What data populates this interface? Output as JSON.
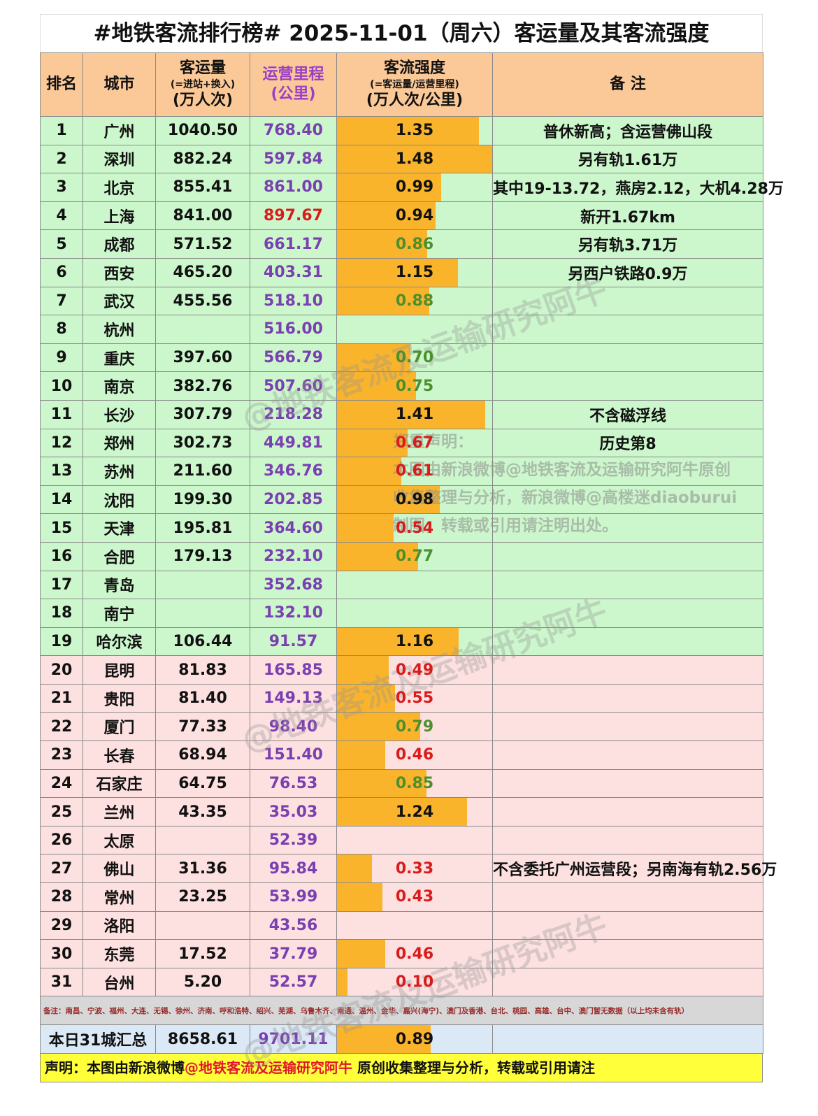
{
  "title": "#地铁客流排行榜# 2025-11-01（周六）客运量及其客流强度",
  "header": {
    "rank": "排名",
    "city": "城市",
    "ridership_l1": "客运量",
    "ridership_l2": "(=进站+换入)",
    "ridership_l3": "(万人次)",
    "mileage_l1": "运营里程",
    "mileage_l2": "(公里)",
    "intensity_l1": "客流强度",
    "intensity_l2": "(=客运量/运营里程)",
    "intensity_l3": "(万人次/公里)",
    "note": "备 注"
  },
  "rows": [
    {
      "rank": "1",
      "city": "广州",
      "ridership": "1040.50",
      "mileage": "768.40",
      "intensity": "1.35",
      "intensity_value": 1.35,
      "note": "普休新高；含运营佛山段",
      "group": "green"
    },
    {
      "rank": "2",
      "city": "深圳",
      "ridership": "882.24",
      "mileage": "597.84",
      "intensity": "1.48",
      "intensity_value": 1.48,
      "note": "另有轨1.61万",
      "group": "green"
    },
    {
      "rank": "3",
      "city": "北京",
      "ridership": "855.41",
      "mileage": "861.00",
      "intensity": "0.99",
      "intensity_value": 0.99,
      "note": "其中19-13.72，燕房2.12，大机4.28万",
      "group": "green"
    },
    {
      "rank": "4",
      "city": "上海",
      "ridership": "841.00",
      "mileage": "897.67",
      "mileage_color": "#d81c1c",
      "intensity": "0.94",
      "intensity_value": 0.94,
      "note": "新开1.67km",
      "group": "green"
    },
    {
      "rank": "5",
      "city": "成都",
      "ridership": "571.52",
      "mileage": "661.17",
      "intensity": "0.86",
      "intensity_value": 0.86,
      "note": "另有轨3.71万",
      "group": "green"
    },
    {
      "rank": "6",
      "city": "西安",
      "ridership": "465.20",
      "mileage": "403.31",
      "intensity": "1.15",
      "intensity_value": 1.15,
      "note": "另西户铁路0.9万",
      "group": "green"
    },
    {
      "rank": "7",
      "city": "武汉",
      "ridership": "455.56",
      "mileage": "518.10",
      "intensity": "0.88",
      "intensity_value": 0.88,
      "note": "",
      "group": "green"
    },
    {
      "rank": "8",
      "city": "杭州",
      "ridership": "",
      "mileage": "516.00",
      "intensity": "",
      "intensity_value": null,
      "note": "",
      "group": "green"
    },
    {
      "rank": "9",
      "city": "重庆",
      "ridership": "397.60",
      "mileage": "566.79",
      "intensity": "0.70",
      "intensity_value": 0.7,
      "note": "",
      "group": "green"
    },
    {
      "rank": "10",
      "city": "南京",
      "ridership": "382.76",
      "mileage": "507.60",
      "intensity": "0.75",
      "intensity_value": 0.75,
      "note": "",
      "group": "green"
    },
    {
      "rank": "11",
      "city": "长沙",
      "ridership": "307.79",
      "mileage": "218.28",
      "intensity": "1.41",
      "intensity_value": 1.41,
      "note": "不含磁浮线",
      "group": "green"
    },
    {
      "rank": "12",
      "city": "郑州",
      "ridership": "302.73",
      "mileage": "449.81",
      "intensity": "0.67",
      "intensity_value": 0.67,
      "note": "历史第8",
      "group": "green"
    },
    {
      "rank": "13",
      "city": "苏州",
      "ridership": "211.60",
      "mileage": "346.76",
      "intensity": "0.61",
      "intensity_value": 0.61,
      "note": "",
      "group": "green"
    },
    {
      "rank": "14",
      "city": "沈阳",
      "ridership": "199.30",
      "mileage": "202.85",
      "intensity": "0.98",
      "intensity_value": 0.98,
      "note": "",
      "group": "green"
    },
    {
      "rank": "15",
      "city": "天津",
      "ridership": "195.81",
      "mileage": "364.60",
      "intensity": "0.54",
      "intensity_value": 0.54,
      "note": "",
      "group": "green"
    },
    {
      "rank": "16",
      "city": "合肥",
      "ridership": "179.13",
      "mileage": "232.10",
      "intensity": "0.77",
      "intensity_value": 0.77,
      "note": "",
      "group": "green"
    },
    {
      "rank": "17",
      "city": "青岛",
      "ridership": "",
      "mileage": "352.68",
      "intensity": "",
      "intensity_value": null,
      "note": "",
      "group": "green"
    },
    {
      "rank": "18",
      "city": "南宁",
      "ridership": "",
      "mileage": "132.10",
      "intensity": "",
      "intensity_value": null,
      "note": "",
      "group": "green"
    },
    {
      "rank": "19",
      "city": "哈尔滨",
      "ridership": "106.44",
      "mileage": "91.57",
      "intensity": "1.16",
      "intensity_value": 1.16,
      "note": "",
      "group": "green"
    },
    {
      "rank": "20",
      "city": "昆明",
      "ridership": "81.83",
      "mileage": "165.85",
      "intensity": "0.49",
      "intensity_value": 0.49,
      "note": "",
      "group": "pink"
    },
    {
      "rank": "21",
      "city": "贵阳",
      "ridership": "81.40",
      "mileage": "149.13",
      "intensity": "0.55",
      "intensity_value": 0.55,
      "note": "",
      "group": "pink"
    },
    {
      "rank": "22",
      "city": "厦门",
      "ridership": "77.33",
      "mileage": "98.40",
      "intensity": "0.79",
      "intensity_value": 0.79,
      "note": "",
      "group": "pink"
    },
    {
      "rank": "23",
      "city": "长春",
      "ridership": "68.94",
      "mileage": "151.40",
      "intensity": "0.46",
      "intensity_value": 0.46,
      "note": "",
      "group": "pink"
    },
    {
      "rank": "24",
      "city": "石家庄",
      "ridership": "64.75",
      "mileage": "76.53",
      "intensity": "0.85",
      "intensity_value": 0.85,
      "note": "",
      "group": "pink"
    },
    {
      "rank": "25",
      "city": "兰州",
      "ridership": "43.35",
      "mileage": "35.03",
      "intensity": "1.24",
      "intensity_value": 1.24,
      "note": "",
      "group": "pink"
    },
    {
      "rank": "26",
      "city": "太原",
      "ridership": "",
      "mileage": "52.39",
      "intensity": "",
      "intensity_value": null,
      "note": "",
      "group": "pink"
    },
    {
      "rank": "27",
      "city": "佛山",
      "ridership": "31.36",
      "mileage": "95.84",
      "intensity": "0.33",
      "intensity_value": 0.33,
      "note": "不含委托广州运营段；另南海有轨2.56万",
      "group": "pink"
    },
    {
      "rank": "28",
      "city": "常州",
      "ridership": "23.25",
      "mileage": "53.99",
      "intensity": "0.43",
      "intensity_value": 0.43,
      "note": "",
      "group": "pink"
    },
    {
      "rank": "29",
      "city": "洛阳",
      "ridership": "",
      "mileage": "43.56",
      "intensity": "",
      "intensity_value": null,
      "note": "",
      "group": "pink"
    },
    {
      "rank": "30",
      "city": "东莞",
      "ridership": "17.52",
      "mileage": "37.79",
      "intensity": "0.46",
      "intensity_value": 0.46,
      "note": "",
      "group": "pink"
    },
    {
      "rank": "31",
      "city": "台州",
      "ridership": "5.20",
      "mileage": "52.57",
      "intensity": "0.10",
      "intensity_value": 0.1,
      "note": "",
      "group": "pink"
    }
  ],
  "footnote": "备注：南昌、宁波、福州、大连、无锡、徐州、济南、呼和浩特、绍兴、芜湖、乌鲁木齐、南通、温州、金华、嘉兴(海宁)、澳门及香港、台北、桃园、高雄、台中、澳门暂无数据（以上均未含有轨）",
  "total": {
    "label": "本日31城汇总",
    "ridership": "8658.61",
    "mileage": "9701.11",
    "intensity": "0.89",
    "intensity_value": 0.89
  },
  "declaration": {
    "prefix": "声明：本图由新浪微博",
    "highlight": "@地铁客流及运输研究阿牛",
    "suffix": " 原创收集整理与分析，转载或引用请注"
  },
  "watermark": {
    "account": "@地铁客流及运输研究阿牛",
    "claim_1": "郑重声明：",
    "claim_2": "本图由新浪微博@地铁客流及运输研究阿牛原创",
    "claim_3": "收集整理与分析，新浪微博@高楼迷diaoburui",
    "claim_4": "制图，转载或引用请注明出处。"
  },
  "colors": {
    "header_bg": "#fbc998",
    "top_group_bg": "#ccf7cc",
    "bottom_group_bg": "#fde0e0",
    "bar": "#f9b42c",
    "intensity_high": "#111111",
    "intensity_mid": "#4d8f2e",
    "intensity_low": "#d81c1c",
    "declaration_bg": "#ffff3a"
  }
}
